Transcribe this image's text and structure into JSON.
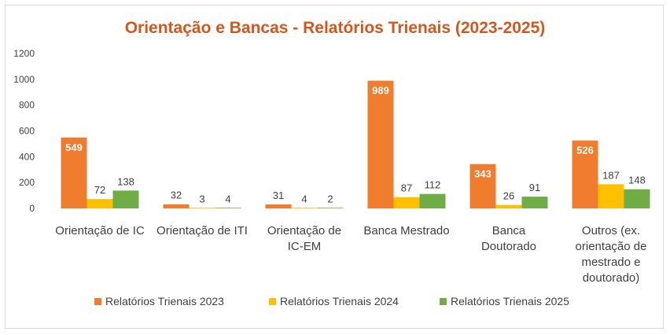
{
  "chart_data": {
    "type": "bar",
    "title": "Orientação e Bancas - Relatórios Trienais (2023-2025)",
    "categories": [
      [
        "Orientação de IC"
      ],
      [
        "Orientação de ITI"
      ],
      [
        "Orientação de",
        "IC-EM"
      ],
      [
        "Banca Mestrado"
      ],
      [
        "Banca",
        "Doutorado"
      ],
      [
        "Outros (ex.",
        "orientação de",
        "mestrado e",
        "doutorado)"
      ]
    ],
    "series": [
      {
        "name": "Relatórios Trienais 2023",
        "color": "#f07c2e",
        "values": [
          549,
          32,
          31,
          989,
          343,
          526
        ],
        "inside_labels": [
          true,
          false,
          false,
          true,
          true,
          true
        ]
      },
      {
        "name": "Relatórios Trienais 2024",
        "color": "#ffc000",
        "values": [
          72,
          3,
          4,
          87,
          26,
          187
        ],
        "inside_labels": [
          false,
          false,
          false,
          false,
          false,
          false
        ]
      },
      {
        "name": "Relatórios Trienais 2025",
        "color": "#70ad47",
        "values": [
          138,
          4,
          2,
          112,
          91,
          148
        ],
        "inside_labels": [
          false,
          false,
          false,
          false,
          false,
          false
        ]
      }
    ],
    "yticks": [
      0,
      200,
      400,
      600,
      800,
      1000,
      1200
    ],
    "ylim": [
      0,
      1200
    ],
    "grid": false,
    "legend": "bottom"
  }
}
